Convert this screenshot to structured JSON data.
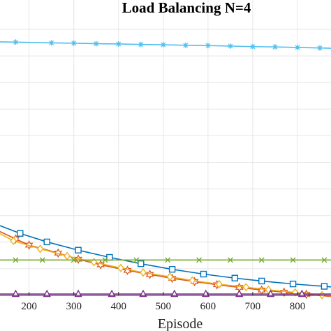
{
  "chart_data": {
    "type": "line",
    "title": "Load Balancing N=4",
    "xlabel": "Episode",
    "ylabel": "",
    "xlim": [
      135,
      875
    ],
    "ylim": [
      0,
      1
    ],
    "grid": true,
    "xticks": [
      200,
      300,
      400,
      500,
      600,
      700,
      800
    ],
    "series": [
      {
        "color": "#4DBEEE",
        "marker": "asterisk",
        "points": [
          [
            135,
            0.953
          ],
          [
            170,
            0.952
          ],
          [
            250,
            0.949
          ],
          [
            300,
            0.948
          ],
          [
            350,
            0.946
          ],
          [
            400,
            0.945
          ],
          [
            450,
            0.943
          ],
          [
            500,
            0.942
          ],
          [
            550,
            0.94
          ],
          [
            600,
            0.939
          ],
          [
            650,
            0.937
          ],
          [
            700,
            0.935
          ],
          [
            750,
            0.934
          ],
          [
            800,
            0.932
          ],
          [
            850,
            0.93
          ],
          [
            875,
            0.929
          ]
        ]
      },
      {
        "color": "#0072BD",
        "marker": "square",
        "points": [
          [
            135,
            0.262
          ],
          [
            180,
            0.233
          ],
          [
            240,
            0.201
          ],
          [
            310,
            0.17
          ],
          [
            380,
            0.143
          ],
          [
            450,
            0.119
          ],
          [
            520,
            0.098
          ],
          [
            590,
            0.08
          ],
          [
            660,
            0.065
          ],
          [
            720,
            0.054
          ],
          [
            790,
            0.043
          ],
          [
            860,
            0.034
          ],
          [
            875,
            0.032
          ]
        ]
      },
      {
        "color": "#D95319",
        "marker": "hexagram",
        "points": [
          [
            135,
            0.24
          ],
          [
            170,
            0.212
          ],
          [
            200,
            0.189
          ],
          [
            265,
            0.159
          ],
          [
            310,
            0.136
          ],
          [
            360,
            0.115
          ],
          [
            420,
            0.094
          ],
          [
            470,
            0.079
          ],
          [
            520,
            0.064
          ],
          [
            570,
            0.052
          ],
          [
            620,
            0.04
          ],
          [
            670,
            0.03
          ],
          [
            720,
            0.02
          ],
          [
            770,
            0.012
          ],
          [
            820,
            0.004
          ],
          [
            875,
            -0.004
          ]
        ]
      },
      {
        "color": "#EDB120",
        "marker": "diamond",
        "points": [
          [
            135,
            0.232
          ],
          [
            165,
            0.205
          ],
          [
            225,
            0.175
          ],
          [
            285,
            0.148
          ],
          [
            345,
            0.125
          ],
          [
            405,
            0.103
          ],
          [
            455,
            0.086
          ],
          [
            515,
            0.07
          ],
          [
            565,
            0.056
          ],
          [
            625,
            0.042
          ],
          [
            685,
            0.031
          ],
          [
            735,
            0.021
          ],
          [
            795,
            0.011
          ],
          [
            855,
            0.001
          ],
          [
            875,
            -0.002
          ]
        ]
      },
      {
        "color": "#77AC30",
        "marker": "x",
        "points": [
          [
            135,
            0.133
          ],
          [
            170,
            0.133
          ],
          [
            230,
            0.133
          ],
          [
            300,
            0.133
          ],
          [
            370,
            0.133
          ],
          [
            440,
            0.133
          ],
          [
            510,
            0.133
          ],
          [
            580,
            0.133
          ],
          [
            650,
            0.133
          ],
          [
            720,
            0.133
          ],
          [
            790,
            0.133
          ],
          [
            860,
            0.133
          ],
          [
            875,
            0.133
          ]
        ]
      },
      {
        "color": "#7E2F8E",
        "marker": "triangle",
        "points": [
          [
            135,
            0.005
          ],
          [
            170,
            0.005
          ],
          [
            240,
            0.005
          ],
          [
            310,
            0.005
          ],
          [
            385,
            0.005
          ],
          [
            455,
            0.005
          ],
          [
            525,
            0.005
          ],
          [
            595,
            0.005
          ],
          [
            670,
            0.005
          ],
          [
            740,
            0.005
          ],
          [
            810,
            0.005
          ],
          [
            875,
            0.005
          ]
        ]
      }
    ]
  }
}
